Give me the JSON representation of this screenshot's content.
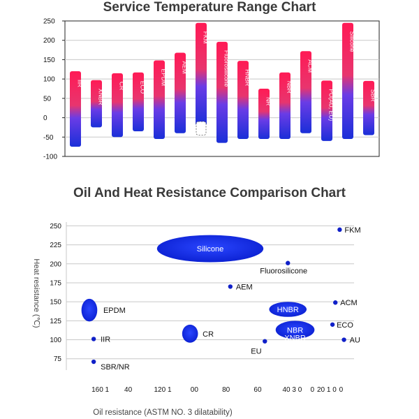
{
  "chart_data": [
    {
      "type": "bar",
      "title": "Service Temperature Range Chart",
      "xlabel": "",
      "ylabel": "",
      "ylim": [
        -100,
        250
      ],
      "yticks": [
        250,
        200,
        150,
        100,
        50,
        0,
        -50,
        -100
      ],
      "grid": true,
      "series": [
        {
          "name": "IIR",
          "min": -75,
          "max": 120
        },
        {
          "name": "XNBR",
          "min": -25,
          "max": 97
        },
        {
          "name": "CR",
          "min": -50,
          "max": 115
        },
        {
          "name": "ECO",
          "min": -35,
          "max": 117
        },
        {
          "name": "EPDM",
          "min": -55,
          "max": 148
        },
        {
          "name": "AEM",
          "min": -40,
          "max": 168
        },
        {
          "name": "FKM",
          "min": -20,
          "max": 245,
          "dashed_lower": true
        },
        {
          "name": "Fluorosilicone",
          "min": -65,
          "max": 196
        },
        {
          "name": "HNBR",
          "min": -55,
          "max": 147
        },
        {
          "name": "NR",
          "min": -55,
          "max": 75
        },
        {
          "name": "NBR",
          "min": -55,
          "max": 117
        },
        {
          "name": "ACM",
          "min": -40,
          "max": 172
        },
        {
          "name": "PU(AU, EU)",
          "min": -60,
          "max": 96
        },
        {
          "name": "Silicone",
          "min": -55,
          "max": 245
        },
        {
          "name": "SBR",
          "min": -45,
          "max": 95
        }
      ]
    },
    {
      "type": "scatter",
      "title": "Oil And Heat Resistance Comparison Chart",
      "xlabel": "Oil resistance (ASTM NO. 3 dilatability)",
      "ylabel": "Heat resistance (℃)",
      "ylim": [
        60,
        255
      ],
      "yticks": [
        250,
        225,
        200,
        175,
        150,
        125,
        100,
        75
      ],
      "xtick_labels": [
        "160 1",
        "40",
        "120 1",
        "00",
        "80",
        "60",
        "40 3 0",
        "0",
        "20 1 0",
        "0"
      ],
      "grid": true,
      "points": [
        {
          "name": "FKM",
          "x": 0.95,
          "y": 245,
          "shape": "dot"
        },
        {
          "name": "Silicone",
          "x": 0.5,
          "y": 220,
          "shape": "ellipse",
          "w": 0.37,
          "h": 34
        },
        {
          "name": "Fluorosilicone",
          "x": 0.77,
          "y": 201,
          "shape": "dot"
        },
        {
          "name": "AEM",
          "x": 0.57,
          "y": 170,
          "shape": "dot"
        },
        {
          "name": "ACM",
          "x": 0.935,
          "y": 149,
          "shape": "dot"
        },
        {
          "name": "HNBR",
          "x": 0.77,
          "y": 140,
          "shape": "ellipse",
          "w": 0.13,
          "h": 18
        },
        {
          "name": "EPDM",
          "x": 0.08,
          "y": 139,
          "shape": "ellipse",
          "w": 0.055,
          "h": 28
        },
        {
          "name": "ECO",
          "x": 0.925,
          "y": 120,
          "shape": "dot"
        },
        {
          "name": "NBR",
          "x": 0.795,
          "y": 113,
          "shape": "ellipse",
          "w": 0.135,
          "h": 22
        },
        {
          "name": "XNBR",
          "x": 0.795,
          "y": 103,
          "shape": "label"
        },
        {
          "name": "CR",
          "x": 0.43,
          "y": 108,
          "shape": "ellipse",
          "w": 0.055,
          "h": 22
        },
        {
          "name": "IIR",
          "x": 0.095,
          "y": 101,
          "shape": "dot"
        },
        {
          "name": "AU",
          "x": 0.965,
          "y": 100,
          "shape": "dot"
        },
        {
          "name": "EU",
          "x": 0.69,
          "y": 98,
          "shape": "dot"
        },
        {
          "name": "SBR/NR",
          "x": 0.095,
          "y": 71,
          "shape": "dot"
        }
      ]
    }
  ]
}
